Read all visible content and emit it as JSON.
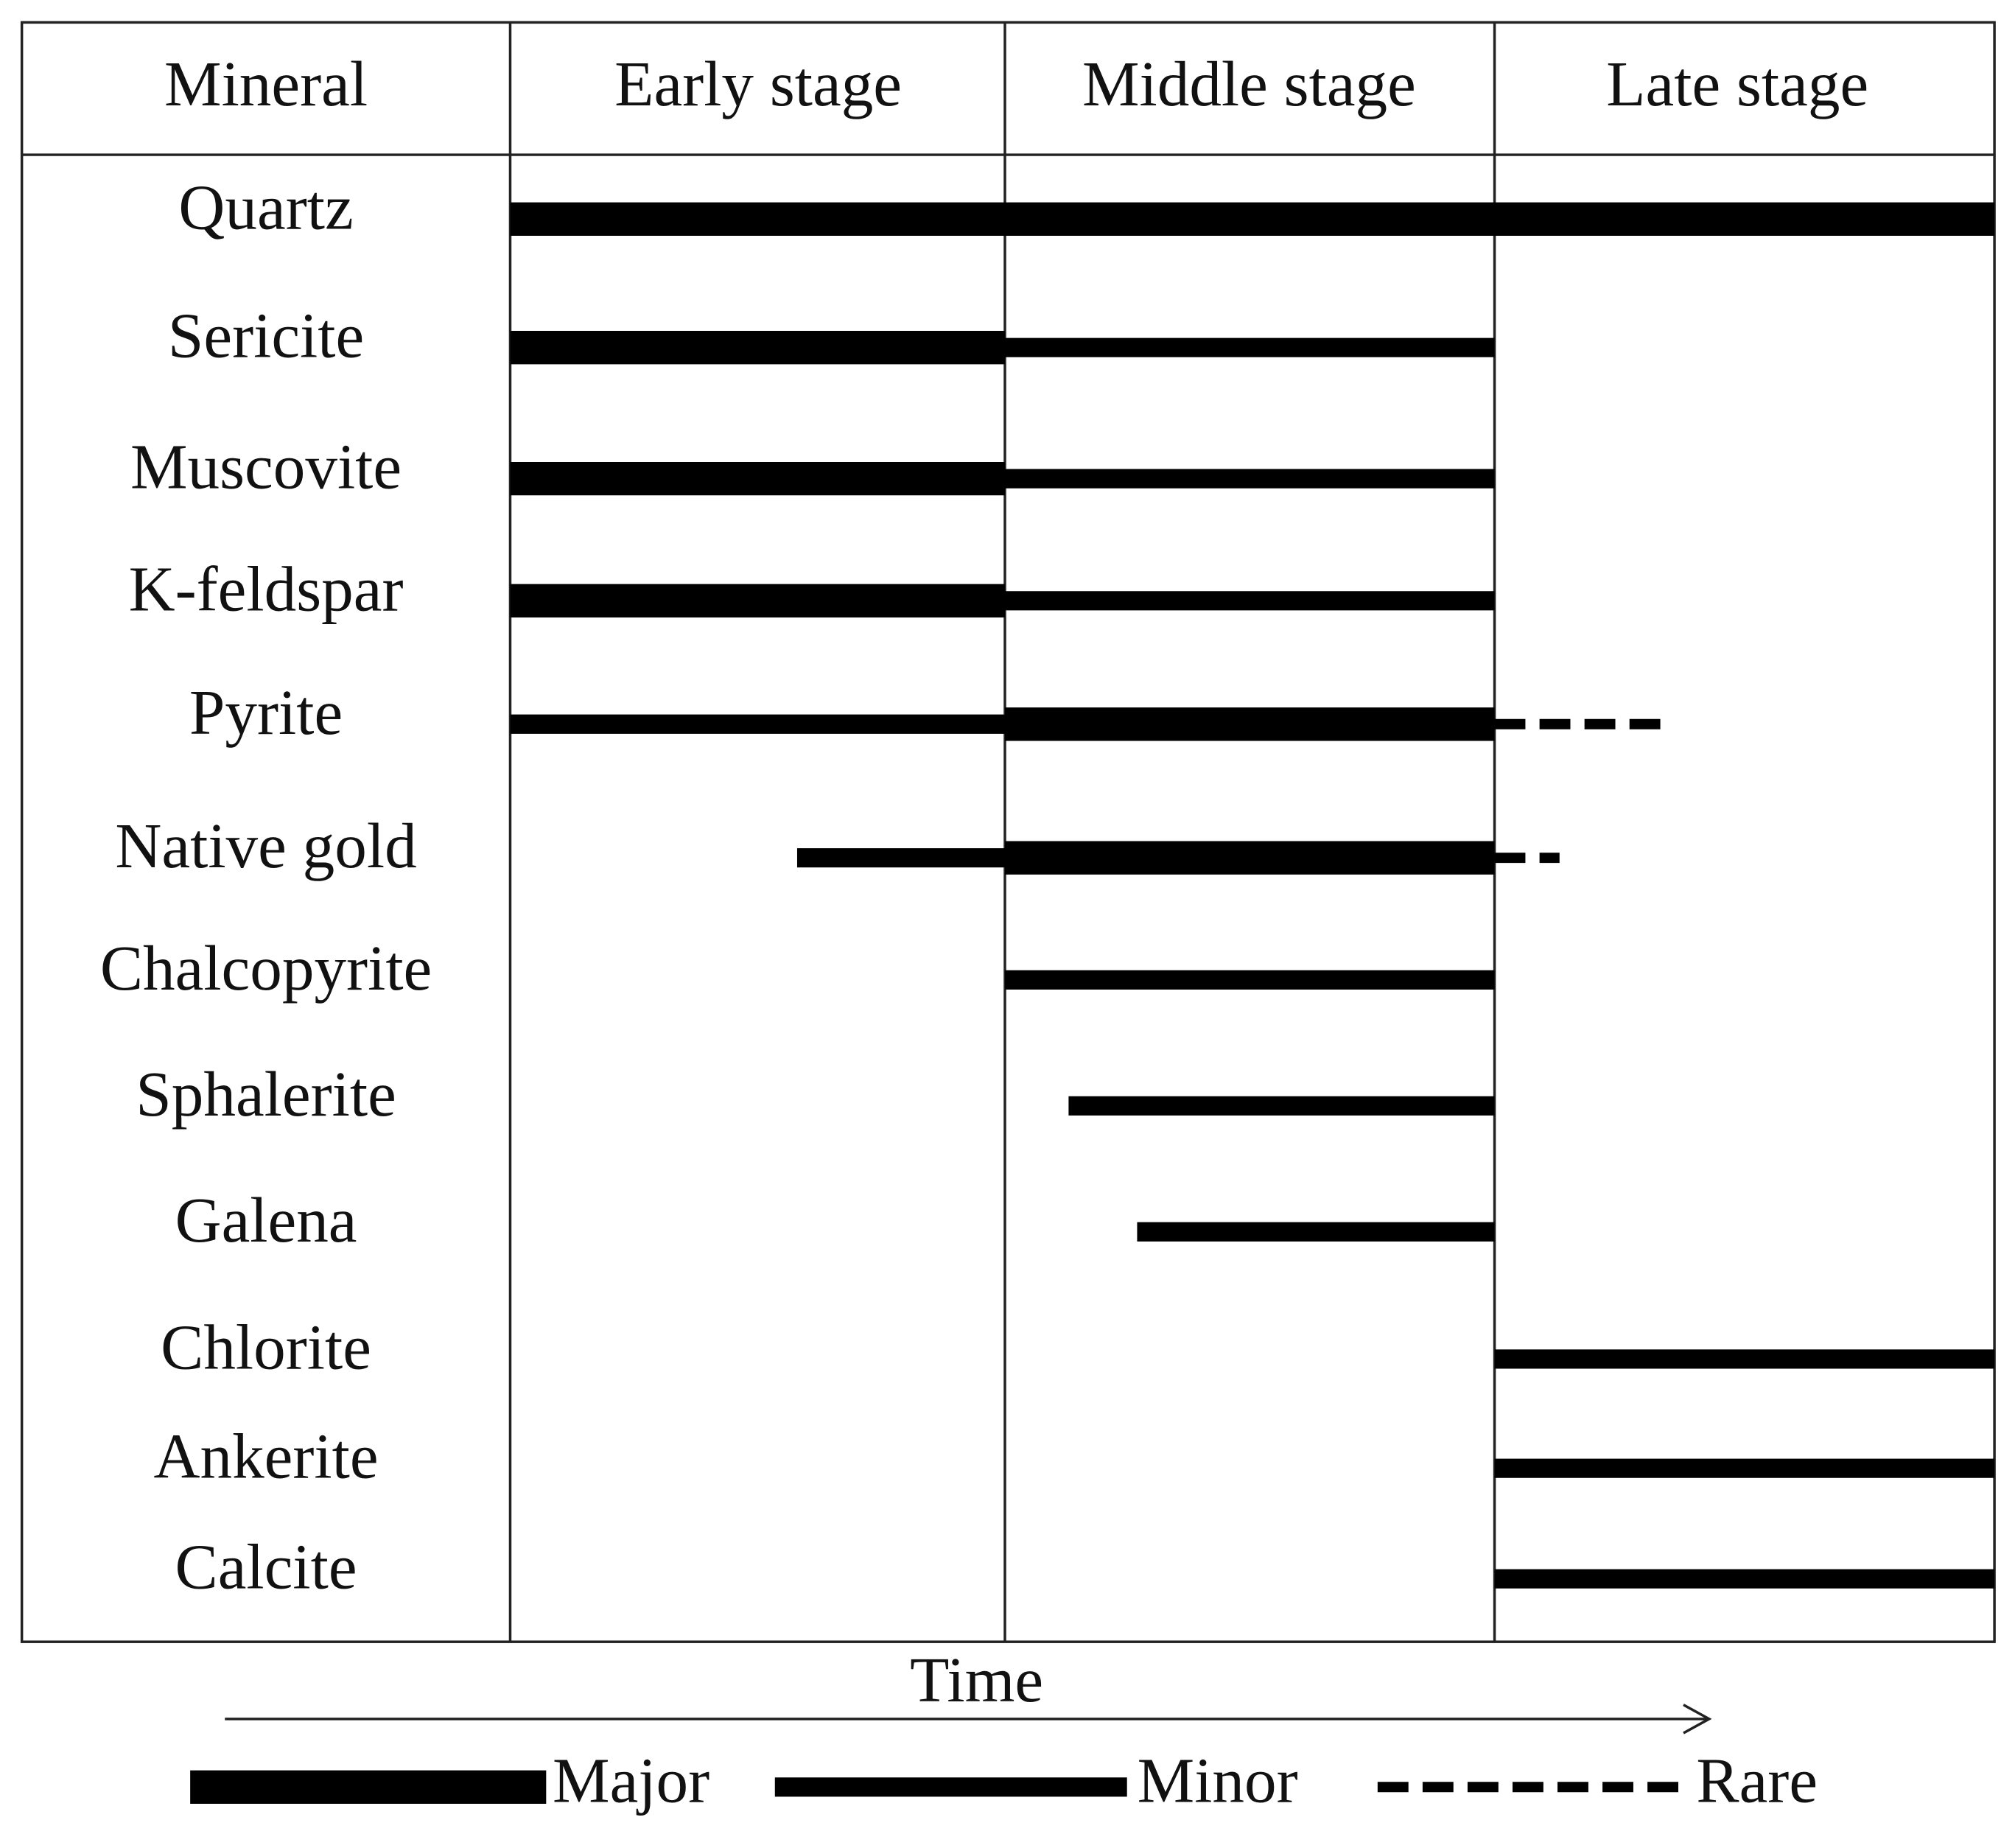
{
  "header": {
    "columns": [
      "Mineral",
      "Early stage",
      "Middle stage",
      "Late stage"
    ]
  },
  "rows": [
    {
      "mineral": "Quartz",
      "segments": [
        {
          "from": 0,
          "to": 3,
          "abundance": "Major"
        }
      ]
    },
    {
      "mineral": "Sericite",
      "segments": [
        {
          "from": 0,
          "to": 1,
          "abundance": "Major"
        },
        {
          "from": 1,
          "to": 2,
          "abundance": "Minor"
        }
      ]
    },
    {
      "mineral": "Muscovite",
      "segments": [
        {
          "from": 0,
          "to": 1,
          "abundance": "Major"
        },
        {
          "from": 1,
          "to": 2,
          "abundance": "Minor"
        }
      ]
    },
    {
      "mineral": "K-feldspar",
      "segments": [
        {
          "from": 0,
          "to": 1,
          "abundance": "Major"
        },
        {
          "from": 1,
          "to": 2,
          "abundance": "Minor"
        }
      ]
    },
    {
      "mineral": "Pyrite",
      "segments": [
        {
          "from": 0,
          "to": 1,
          "abundance": "Minor"
        },
        {
          "from": 1,
          "to": 2,
          "abundance": "Major"
        },
        {
          "from": 2,
          "to": 2.35,
          "abundance": "Rare"
        }
      ]
    },
    {
      "mineral": "Native gold",
      "segments": [
        {
          "from": 0.58,
          "to": 1,
          "abundance": "Minor"
        },
        {
          "from": 1,
          "to": 2,
          "abundance": "Major"
        },
        {
          "from": 2,
          "to": 2.13,
          "abundance": "Rare"
        }
      ]
    },
    {
      "mineral": "Chalcopyrite",
      "segments": [
        {
          "from": 1,
          "to": 2,
          "abundance": "Minor"
        }
      ]
    },
    {
      "mineral": "Sphalerite",
      "segments": [
        {
          "from": 1.13,
          "to": 2,
          "abundance": "Minor"
        }
      ]
    },
    {
      "mineral": "Galena",
      "segments": [
        {
          "from": 1.27,
          "to": 2,
          "abundance": "Minor"
        }
      ]
    },
    {
      "mineral": "Chlorite",
      "segments": [
        {
          "from": 2,
          "to": 3,
          "abundance": "Minor"
        }
      ]
    },
    {
      "mineral": "Ankerite",
      "segments": [
        {
          "from": 2,
          "to": 3,
          "abundance": "Minor"
        }
      ]
    },
    {
      "mineral": "Calcite",
      "segments": [
        {
          "from": 2,
          "to": 3,
          "abundance": "Minor"
        }
      ]
    }
  ],
  "axis_label": "Time",
  "legend": [
    "Major",
    "Minor",
    "Rare"
  ]
}
